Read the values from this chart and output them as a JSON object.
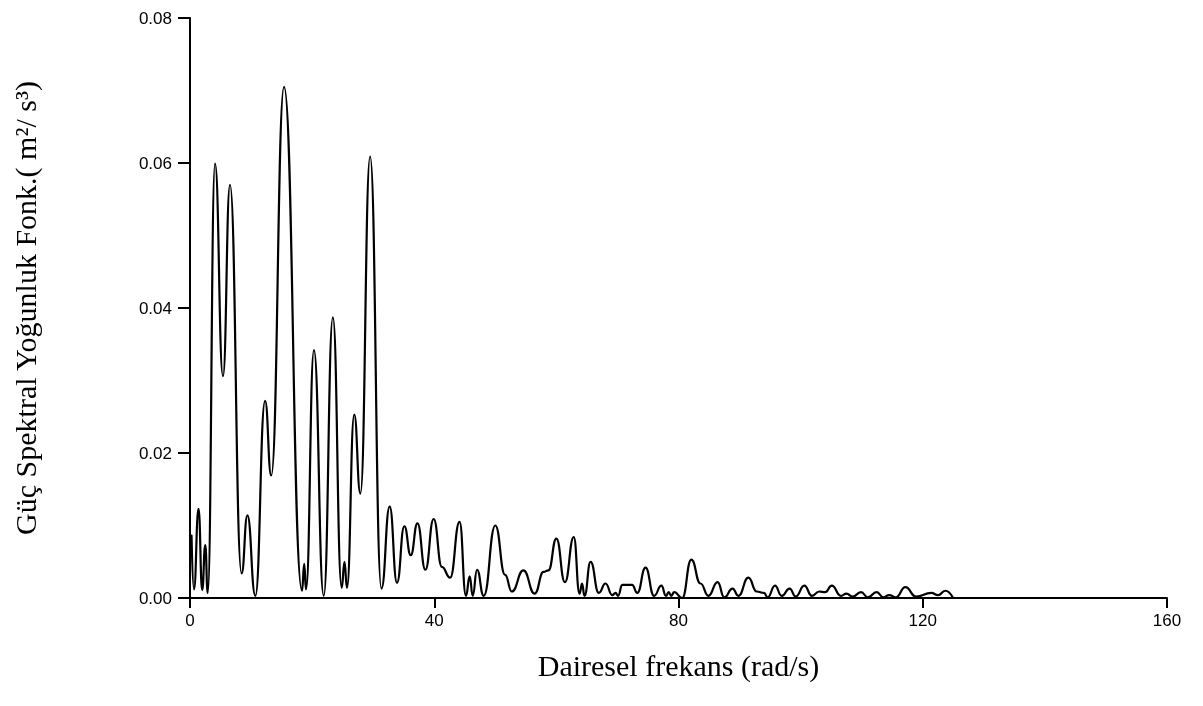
{
  "chart_data": {
    "type": "line",
    "xlabel": "Dairesel frekans (rad/s)",
    "ylabel": "Güç Spektral Yoğunluk Fonk.( m²/ s³)",
    "xlim": [
      0,
      160
    ],
    "xticks": [
      0,
      40,
      80,
      120,
      160
    ],
    "ylim": [
      0,
      0.08
    ],
    "yticks": [
      {
        "value": 0,
        "label": "0.00"
      },
      0.02,
      0.04,
      0.06,
      0.08
    ],
    "grid": false,
    "marker": "none",
    "line_style": "solid",
    "series": [
      {
        "color": "#000000",
        "x": [
          0.25,
          0.65,
          1.4,
          2.0,
          2.5,
          2.9,
          4.1,
          5.4,
          6.55,
          8.45,
          9.4,
          10.7,
          12.3,
          13.3,
          15.4,
          18.35,
          18.7,
          19.0,
          20.3,
          21.9,
          23.4,
          24.85,
          25.3,
          25.7,
          26.9,
          27.9,
          29.5,
          31.35,
          32.7,
          33.9,
          35.1,
          36.15,
          37.25,
          38.55,
          39.9,
          41.25,
          42.6,
          44.15,
          45.2,
          45.8,
          46.3,
          47.0,
          48.1,
          50.0,
          51.6,
          52.7,
          54.6,
          56.45,
          57.9,
          58.7,
          60.0,
          61.4,
          62.85,
          63.8,
          64.2,
          64.6,
          65.6,
          66.95,
          68.05,
          69.15,
          69.7,
          70.1,
          70.8,
          72.4,
          73.25,
          74.6,
          76.0,
          77.2,
          77.95,
          78.4,
          78.8,
          79.3,
          80.6,
          82.1,
          83.6,
          84.9,
          86.4,
          87.5,
          88.85,
          89.8,
          91.45,
          92.8,
          94.0,
          94.6,
          95.8,
          96.9,
          98.2,
          99.2,
          100.6,
          101.85,
          103.05,
          104.0,
          105.1,
          106.6,
          107.5,
          108.5,
          109.9,
          111.0,
          112.45,
          113.55,
          114.5,
          115.6,
          117.15,
          118.9,
          121.4,
          122.5,
          123.7,
          124.9
        ],
        "values": [
          0.0086,
          0.0012,
          0.0123,
          0.0011,
          0.0073,
          0.0007,
          0.0599,
          0.0306,
          0.057,
          0.0034,
          0.0114,
          0.0003,
          0.0272,
          0.0169,
          0.0705,
          0.001,
          0.0047,
          0.0012,
          0.0342,
          0.0003,
          0.0387,
          0.0014,
          0.005,
          0.0014,
          0.0253,
          0.0144,
          0.0609,
          0.0013,
          0.0126,
          0.0021,
          0.0099,
          0.0059,
          0.0103,
          0.0039,
          0.0109,
          0.0043,
          0.0028,
          0.0105,
          0.0003,
          0.003,
          0.0003,
          0.0039,
          0.0003,
          0.01,
          0.0032,
          0.0009,
          0.0038,
          0.0006,
          0.0036,
          0.0038,
          0.0082,
          0.0022,
          0.0084,
          0.0006,
          0.002,
          0.0003,
          0.005,
          0.0007,
          0.002,
          0.0004,
          0.0007,
          0.0003,
          0.0018,
          0.0018,
          0.0007,
          0.0042,
          0.0003,
          0.0017,
          0.0003,
          0.0008,
          0.0003,
          0.0008,
          0.0,
          0.0053,
          0.002,
          0.0003,
          0.0022,
          0.0001,
          0.0013,
          0.0003,
          0.0028,
          0.0009,
          0.0007,
          0.0001,
          0.0017,
          0.0003,
          0.0013,
          0.0002,
          0.0017,
          0.0003,
          0.0009,
          0.0008,
          0.0017,
          0.0003,
          0.0006,
          0.0002,
          0.0008,
          0.0001,
          0.0008,
          0.0001,
          0.0004,
          0.0001,
          0.0015,
          0.0002,
          0.0007,
          0.0004,
          0.001,
          0.0001
        ]
      }
    ]
  }
}
